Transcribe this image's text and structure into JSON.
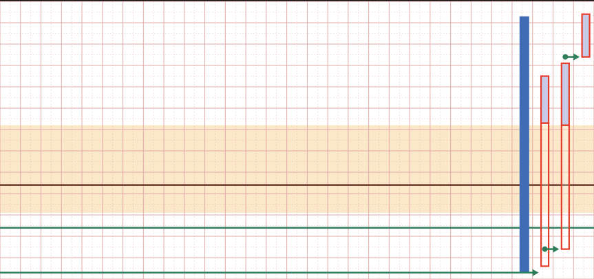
{
  "chart_data": {
    "type": "bar",
    "title": "",
    "xlabel": "",
    "ylabel": "",
    "grid": true,
    "legend": "none",
    "x_range": [
      0,
      29
    ],
    "y_range": [
      0,
      13
    ],
    "colors": {
      "grid": "#e2a6a6",
      "band": "#fbe8c8",
      "horizontal_line": "#6a3a2a",
      "reference_lines": "#2e7d5b",
      "blue_bar": "#3f6cb5",
      "bar_outline": "#e53b2a",
      "bar_fill_upper": "#c7cbe6",
      "arrow": "#2e7d5b",
      "background": "#ffffff"
    },
    "shaded_band": {
      "y": [
        3.1,
        7.2
      ]
    },
    "horizontal_line": {
      "y": 4.4
    },
    "reference_lines": [
      {
        "y": 2.4
      },
      {
        "y": 0.3
      }
    ],
    "blue_bar": {
      "x": 25.6,
      "y": [
        0.3,
        12.3
      ]
    },
    "outlined_bars": [
      {
        "x": 26.6,
        "low": 0.6,
        "high": 9.5,
        "split": 7.3
      },
      {
        "x": 27.6,
        "low": 1.4,
        "high": 10.1,
        "split": 7.2
      },
      {
        "x": 28.6,
        "low": 10.4,
        "high": 12.4
      }
    ],
    "arrows": [
      {
        "from": [
          0,
          0.3
        ],
        "to": [
          26.3,
          0.3
        ]
      },
      {
        "from": [
          26.6,
          1.4
        ],
        "to": [
          27.3,
          1.4
        ]
      },
      {
        "from": [
          27.6,
          10.4
        ],
        "to": [
          28.3,
          10.4
        ]
      }
    ]
  }
}
